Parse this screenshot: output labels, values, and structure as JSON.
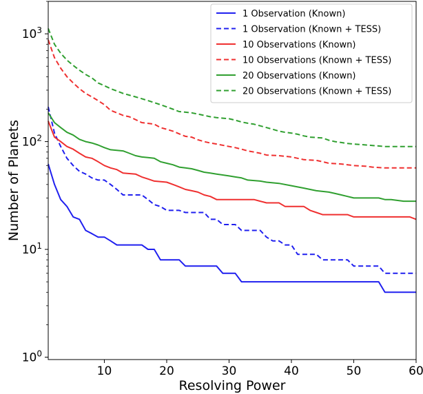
{
  "chart_data": {
    "type": "line",
    "title": "",
    "xlabel": "Resolving Power",
    "ylabel": "Number of Planets",
    "xlim": [
      1,
      60
    ],
    "ylim": [
      0.95,
      2000
    ],
    "yscale": "log",
    "grid": false,
    "legend_position": "top-right",
    "x_ticks": [
      {
        "value": 10,
        "label": "10"
      },
      {
        "value": 20,
        "label": "20"
      },
      {
        "value": 30,
        "label": "30"
      },
      {
        "value": 40,
        "label": "40"
      },
      {
        "value": 50,
        "label": "50"
      },
      {
        "value": 60,
        "label": "60"
      }
    ],
    "y_ticks": [
      {
        "value": 1,
        "base": "10",
        "exp": "0"
      },
      {
        "value": 10,
        "base": "10",
        "exp": "1"
      },
      {
        "value": 100,
        "base": "10",
        "exp": "2"
      },
      {
        "value": 1000,
        "base": "10",
        "exp": "3"
      }
    ],
    "series": [
      {
        "name": "1 Observation (Known)",
        "color": "#1f1fef",
        "dash": "solid",
        "points": [
          [
            1,
            62
          ],
          [
            2,
            40
          ],
          [
            3,
            29
          ],
          [
            4,
            25
          ],
          [
            5,
            20
          ],
          [
            6,
            19
          ],
          [
            7,
            15
          ],
          [
            8,
            14
          ],
          [
            9,
            13
          ],
          [
            10,
            13
          ],
          [
            11,
            12
          ],
          [
            12,
            11
          ],
          [
            16,
            11
          ],
          [
            17,
            10
          ],
          [
            18,
            10
          ],
          [
            19,
            8
          ],
          [
            22,
            8
          ],
          [
            23,
            7
          ],
          [
            28,
            7
          ],
          [
            29,
            6
          ],
          [
            31,
            6
          ],
          [
            32,
            5
          ],
          [
            54,
            5
          ],
          [
            55,
            4
          ],
          [
            60,
            4
          ]
        ]
      },
      {
        "name": "1 Observation (Known + TESS)",
        "color": "#1f1fef",
        "dash": "dashed",
        "points": [
          [
            1,
            210
          ],
          [
            2,
            120
          ],
          [
            3,
            90
          ],
          [
            4,
            70
          ],
          [
            5,
            60
          ],
          [
            6,
            53
          ],
          [
            7,
            50
          ],
          [
            8,
            46
          ],
          [
            9,
            44
          ],
          [
            10,
            44
          ],
          [
            11,
            40
          ],
          [
            12,
            36
          ],
          [
            13,
            32
          ],
          [
            16,
            32
          ],
          [
            17,
            29
          ],
          [
            18,
            26
          ],
          [
            19,
            25
          ],
          [
            20,
            23
          ],
          [
            22,
            23
          ],
          [
            23,
            22
          ],
          [
            26,
            22
          ],
          [
            27,
            19
          ],
          [
            28,
            19
          ],
          [
            29,
            17
          ],
          [
            31,
            17
          ],
          [
            32,
            15
          ],
          [
            35,
            15
          ],
          [
            36,
            13
          ],
          [
            37,
            12
          ],
          [
            38,
            12
          ],
          [
            39,
            11
          ],
          [
            40,
            11
          ],
          [
            41,
            9
          ],
          [
            44,
            9
          ],
          [
            45,
            8
          ],
          [
            49,
            8
          ],
          [
            50,
            7
          ],
          [
            54,
            7
          ],
          [
            55,
            6
          ],
          [
            60,
            6
          ]
        ]
      },
      {
        "name": "10 Observations (Known)",
        "color": "#ef2f2f",
        "dash": "solid",
        "points": [
          [
            1,
            155
          ],
          [
            2,
            110
          ],
          [
            3,
            100
          ],
          [
            4,
            90
          ],
          [
            5,
            85
          ],
          [
            6,
            78
          ],
          [
            7,
            72
          ],
          [
            8,
            70
          ],
          [
            9,
            65
          ],
          [
            10,
            60
          ],
          [
            11,
            57
          ],
          [
            12,
            55
          ],
          [
            13,
            51
          ],
          [
            15,
            50
          ],
          [
            16,
            47
          ],
          [
            17,
            45
          ],
          [
            18,
            43
          ],
          [
            20,
            42
          ],
          [
            21,
            40
          ],
          [
            22,
            38
          ],
          [
            23,
            36
          ],
          [
            24,
            35
          ],
          [
            25,
            34
          ],
          [
            26,
            32
          ],
          [
            27,
            31
          ],
          [
            28,
            29
          ],
          [
            34,
            29
          ],
          [
            35,
            28
          ],
          [
            36,
            27
          ],
          [
            38,
            27
          ],
          [
            39,
            25
          ],
          [
            42,
            25
          ],
          [
            43,
            23
          ],
          [
            44,
            22
          ],
          [
            45,
            21
          ],
          [
            49,
            21
          ],
          [
            50,
            20
          ],
          [
            59,
            20
          ],
          [
            60,
            19
          ]
        ]
      },
      {
        "name": "10 Observations (Known + TESS)",
        "color": "#ef2f2f",
        "dash": "dashed",
        "points": [
          [
            1,
            880
          ],
          [
            2,
            600
          ],
          [
            3,
            480
          ],
          [
            4,
            400
          ],
          [
            5,
            350
          ],
          [
            6,
            310
          ],
          [
            7,
            280
          ],
          [
            8,
            260
          ],
          [
            9,
            240
          ],
          [
            10,
            220
          ],
          [
            11,
            195
          ],
          [
            12,
            185
          ],
          [
            13,
            175
          ],
          [
            14,
            170
          ],
          [
            15,
            160
          ],
          [
            16,
            150
          ],
          [
            18,
            145
          ],
          [
            19,
            135
          ],
          [
            20,
            130
          ],
          [
            21,
            125
          ],
          [
            22,
            118
          ],
          [
            23,
            112
          ],
          [
            24,
            110
          ],
          [
            25,
            104
          ],
          [
            26,
            100
          ],
          [
            27,
            97
          ],
          [
            28,
            95
          ],
          [
            30,
            90
          ],
          [
            31,
            88
          ],
          [
            32,
            85
          ],
          [
            33,
            82
          ],
          [
            34,
            80
          ],
          [
            35,
            78
          ],
          [
            36,
            75
          ],
          [
            38,
            74
          ],
          [
            40,
            72
          ],
          [
            41,
            70
          ],
          [
            42,
            68
          ],
          [
            44,
            67
          ],
          [
            45,
            65
          ],
          [
            46,
            63
          ],
          [
            48,
            62
          ],
          [
            49,
            61
          ],
          [
            50,
            60
          ],
          [
            52,
            59
          ],
          [
            53,
            58
          ],
          [
            55,
            57
          ],
          [
            60,
            57
          ]
        ]
      },
      {
        "name": "20 Observations (Known)",
        "color": "#2f9f2f",
        "dash": "solid",
        "points": [
          [
            1,
            185
          ],
          [
            2,
            150
          ],
          [
            3,
            135
          ],
          [
            4,
            122
          ],
          [
            5,
            115
          ],
          [
            6,
            105
          ],
          [
            7,
            100
          ],
          [
            8,
            97
          ],
          [
            9,
            93
          ],
          [
            10,
            88
          ],
          [
            11,
            84
          ],
          [
            13,
            82
          ],
          [
            14,
            78
          ],
          [
            15,
            74
          ],
          [
            16,
            72
          ],
          [
            17,
            71
          ],
          [
            18,
            70
          ],
          [
            19,
            65
          ],
          [
            20,
            63
          ],
          [
            21,
            61
          ],
          [
            22,
            58
          ],
          [
            23,
            57
          ],
          [
            24,
            56
          ],
          [
            25,
            54
          ],
          [
            26,
            52
          ],
          [
            27,
            51
          ],
          [
            28,
            50
          ],
          [
            30,
            48
          ],
          [
            31,
            47
          ],
          [
            32,
            46
          ],
          [
            33,
            44
          ],
          [
            35,
            43
          ],
          [
            36,
            42
          ],
          [
            38,
            41
          ],
          [
            40,
            39
          ],
          [
            42,
            37
          ],
          [
            43,
            36
          ],
          [
            44,
            35
          ],
          [
            46,
            34
          ],
          [
            47,
            33
          ],
          [
            48,
            32
          ],
          [
            49,
            31
          ],
          [
            50,
            30
          ],
          [
            52,
            30
          ],
          [
            54,
            30
          ],
          [
            55,
            29
          ],
          [
            56,
            29
          ],
          [
            58,
            28
          ],
          [
            60,
            28
          ]
        ]
      },
      {
        "name": "20 Observations (Known + TESS)",
        "color": "#2f9f2f",
        "dash": "dashed",
        "points": [
          [
            1,
            1120
          ],
          [
            2,
            800
          ],
          [
            3,
            660
          ],
          [
            4,
            570
          ],
          [
            5,
            510
          ],
          [
            6,
            460
          ],
          [
            7,
            420
          ],
          [
            8,
            390
          ],
          [
            9,
            350
          ],
          [
            10,
            330
          ],
          [
            11,
            310
          ],
          [
            12,
            295
          ],
          [
            13,
            280
          ],
          [
            14,
            270
          ],
          [
            15,
            260
          ],
          [
            16,
            250
          ],
          [
            17,
            240
          ],
          [
            18,
            230
          ],
          [
            19,
            220
          ],
          [
            20,
            210
          ],
          [
            21,
            200
          ],
          [
            22,
            190
          ],
          [
            24,
            185
          ],
          [
            25,
            180
          ],
          [
            26,
            175
          ],
          [
            27,
            170
          ],
          [
            28,
            167
          ],
          [
            30,
            163
          ],
          [
            31,
            158
          ],
          [
            32,
            152
          ],
          [
            33,
            148
          ],
          [
            34,
            145
          ],
          [
            35,
            140
          ],
          [
            36,
            135
          ],
          [
            37,
            130
          ],
          [
            38,
            125
          ],
          [
            39,
            122
          ],
          [
            40,
            120
          ],
          [
            41,
            117
          ],
          [
            42,
            113
          ],
          [
            43,
            110
          ],
          [
            45,
            108
          ],
          [
            46,
            103
          ],
          [
            47,
            100
          ],
          [
            48,
            98
          ],
          [
            49,
            96
          ],
          [
            50,
            95
          ],
          [
            52,
            93
          ],
          [
            53,
            92
          ],
          [
            55,
            90
          ],
          [
            60,
            90
          ]
        ]
      }
    ]
  }
}
